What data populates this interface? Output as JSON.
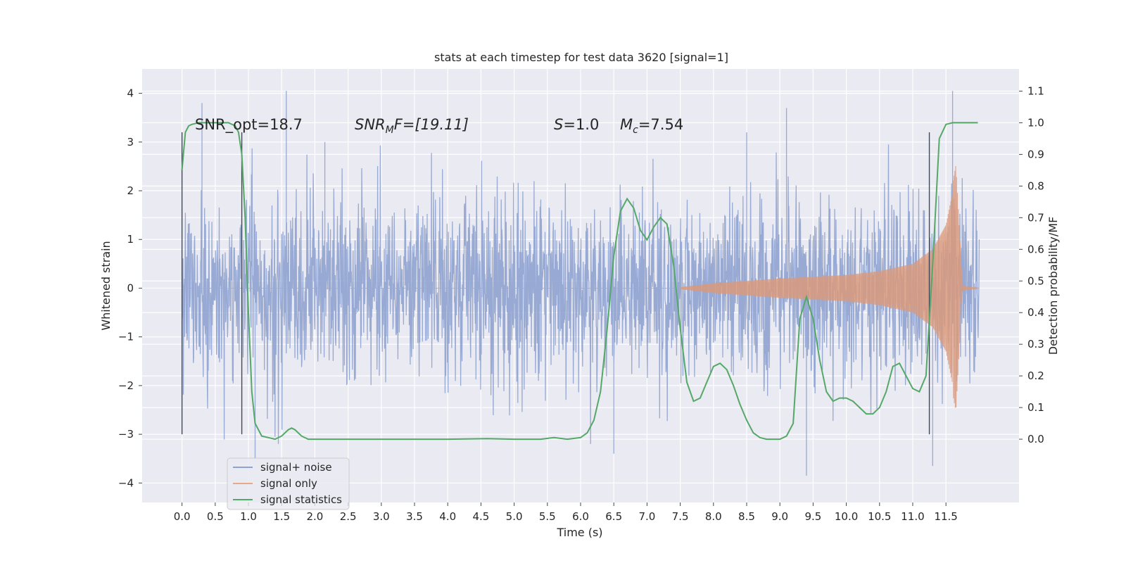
{
  "chart_data": {
    "type": "line",
    "title": "stats at each timestep for test data 3620 [signal=1]",
    "xlabel": "Time (s)",
    "ylabel_left": "Whitened strain",
    "ylabel_right": "Detection probability/MF",
    "xlim": [
      -0.6,
      12.6
    ],
    "ylim_left": [
      -4.4,
      4.5
    ],
    "ylim_right": [
      -0.2,
      1.17
    ],
    "x_ticks": [
      "0.0",
      "0.5",
      "1.0",
      "1.5",
      "2.0",
      "2.5",
      "3.0",
      "3.5",
      "4.0",
      "4.5",
      "5.0",
      "5.5",
      "6.0",
      "6.5",
      "7.0",
      "7.5",
      "8.0",
      "8.5",
      "9.0",
      "9.5",
      "10.0",
      "10.5",
      "11.0",
      "11.5"
    ],
    "y_ticks_left": [
      "4",
      "3",
      "2",
      "1",
      "0",
      "−1",
      "−2",
      "−3",
      "−4"
    ],
    "y_ticks_right": [
      "1.1",
      "1.0",
      "0.9",
      "0.8",
      "0.7",
      "0.6",
      "0.5",
      "0.4",
      "0.3",
      "0.2",
      "0.1",
      "0.0"
    ],
    "annotations": {
      "snr_opt": "SNR_opt=18.7",
      "snr_mf_main": "SNR",
      "snr_mf_sub": "M",
      "snr_mf_rest": "F=[19.11]",
      "s_main": "S",
      "s_rest": "=1.0",
      "mc_main": "M",
      "mc_sub": "c",
      "mc_rest": "=7.54"
    },
    "vertical_lines": [
      0.0,
      0.9,
      11.25
    ],
    "legend": {
      "position": "lower-left",
      "entries": [
        "signal+ noise",
        "signal only",
        "signal statistics"
      ]
    },
    "colors": {
      "noise": "#8fa3cf",
      "signal": "#dd8452",
      "stats": "#55a868",
      "background": "#eaeaf2",
      "grid": "#ffffff"
    },
    "series": [
      {
        "name": "signal+ noise",
        "axis": "left",
        "description_range": [
          0.0,
          12.0
        ],
        "amplitude_typical": [
          -2.0,
          2.0
        ],
        "peaks": [
          {
            "x": 0.3,
            "y": 3.8
          },
          {
            "x": 1.57,
            "y": 4.05
          },
          {
            "x": 2.15,
            "y": 3.0
          },
          {
            "x": 8.5,
            "y": 3.2
          },
          {
            "x": 9.1,
            "y": 3.7
          },
          {
            "x": 11.6,
            "y": 4.05
          },
          {
            "x": 9.4,
            "y": -3.85
          },
          {
            "x": 11.3,
            "y": -3.65
          },
          {
            "x": 6.5,
            "y": -3.4
          },
          {
            "x": 1.1,
            "y": -3.5
          }
        ]
      },
      {
        "name": "signal only",
        "axis": "left",
        "x_start": 7.4,
        "x_peak": 11.65,
        "x_end": 12.0,
        "envelope": [
          {
            "x": 7.5,
            "y": 0.02
          },
          {
            "x": 8.0,
            "y": 0.1
          },
          {
            "x": 9.0,
            "y": 0.2
          },
          {
            "x": 10.0,
            "y": 0.27
          },
          {
            "x": 10.5,
            "y": 0.35
          },
          {
            "x": 11.0,
            "y": 0.5
          },
          {
            "x": 11.3,
            "y": 0.8
          },
          {
            "x": 11.5,
            "y": 1.3
          },
          {
            "x": 11.65,
            "y": 2.3
          },
          {
            "x": 11.75,
            "y": 0.05
          },
          {
            "x": 12.0,
            "y": 0.0
          }
        ]
      },
      {
        "name": "signal statistics",
        "axis": "right",
        "x": [
          0.0,
          0.05,
          0.1,
          0.15,
          0.25,
          0.5,
          0.7,
          0.8,
          0.85,
          0.9,
          0.95,
          1.0,
          1.05,
          1.1,
          1.2,
          1.4,
          1.5,
          1.6,
          1.65,
          1.7,
          1.8,
          1.9,
          2.0,
          2.5,
          3.0,
          4.0,
          4.6,
          5.0,
          5.4,
          5.6,
          5.8,
          6.0,
          6.1,
          6.2,
          6.3,
          6.4,
          6.5,
          6.6,
          6.7,
          6.8,
          6.9,
          7.0,
          7.1,
          7.2,
          7.3,
          7.4,
          7.5,
          7.6,
          7.7,
          7.8,
          7.9,
          8.0,
          8.1,
          8.2,
          8.3,
          8.4,
          8.5,
          8.6,
          8.7,
          8.8,
          8.9,
          9.0,
          9.1,
          9.2,
          9.3,
          9.4,
          9.5,
          9.6,
          9.7,
          9.8,
          9.9,
          10.0,
          10.1,
          10.2,
          10.3,
          10.4,
          10.5,
          10.6,
          10.7,
          10.8,
          10.9,
          11.0,
          11.1,
          11.2,
          11.3,
          11.4,
          11.5,
          11.6,
          11.8,
          11.98
        ],
        "y": [
          0.85,
          0.97,
          0.99,
          0.995,
          1.0,
          1.0,
          1.0,
          0.99,
          0.97,
          0.9,
          0.7,
          0.4,
          0.15,
          0.05,
          0.01,
          0.0,
          0.01,
          0.03,
          0.035,
          0.03,
          0.01,
          0.0,
          0.0,
          0.0,
          0.0,
          0.0,
          0.002,
          0.0,
          0.0,
          0.005,
          0.0,
          0.005,
          0.02,
          0.06,
          0.15,
          0.35,
          0.58,
          0.72,
          0.76,
          0.73,
          0.66,
          0.63,
          0.67,
          0.7,
          0.68,
          0.55,
          0.35,
          0.18,
          0.12,
          0.13,
          0.18,
          0.23,
          0.24,
          0.22,
          0.17,
          0.11,
          0.06,
          0.02,
          0.005,
          0.0,
          0.0,
          0.0,
          0.01,
          0.05,
          0.38,
          0.45,
          0.38,
          0.25,
          0.15,
          0.12,
          0.13,
          0.13,
          0.12,
          0.1,
          0.08,
          0.08,
          0.1,
          0.15,
          0.23,
          0.24,
          0.2,
          0.16,
          0.15,
          0.2,
          0.55,
          0.95,
          0.995,
          1.0,
          1.0,
          1.0
        ]
      }
    ]
  }
}
